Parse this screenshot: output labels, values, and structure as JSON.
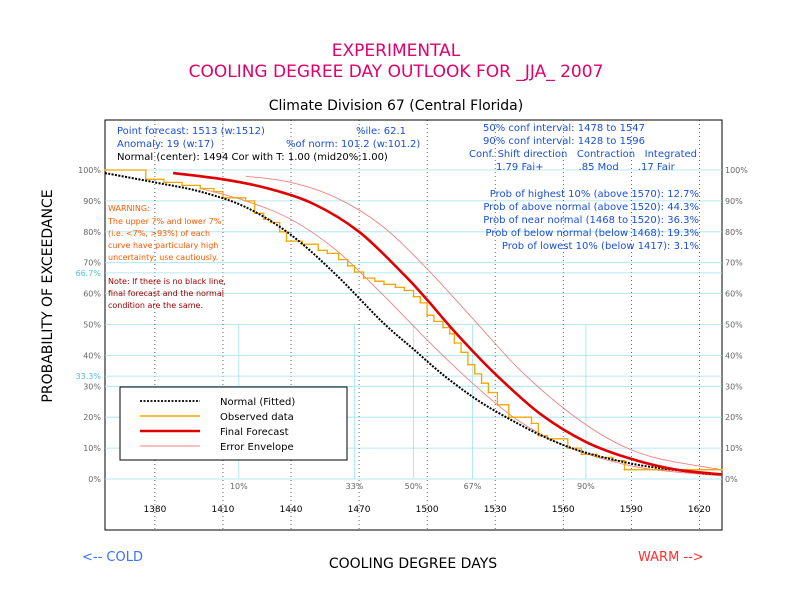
{
  "titles": {
    "line1": "EXPERIMENTAL",
    "line2": "COOLING DEGREE DAY OUTLOOK FOR _JJA_ 2007",
    "subtitle": "Climate Division 67 (Central Florida)"
  },
  "info": {
    "point_forecast": "Point forecast: 1513 (w:1512)",
    "anomaly": "Anomaly: 19 (w:17)",
    "normal": "Normal (center): 1494 Cor with T: 1.00 (mid20%:1.00)",
    "pctile": "%ile: 62.1",
    "pct_norm": "%of norm: 101.2 (w:101.2)",
    "conf50": "50% conf interval: 1478 to 1547",
    "conf90": "90% conf interval: 1428 to 1596",
    "conf_header": "Conf. Shift direction   Contraction   Integrated",
    "conf_values": "1.79 Fai+           .85 Mod      .17 Fair"
  },
  "probs": [
    "Prob of highest 10% (above 1570): 12.7%",
    "Prob of above normal (above 1520): 44.3%",
    "Prob of near normal (1468 to 1520): 36.3%",
    "Prob of below normal (below 1468): 19.3%",
    "Prob of lowest 10% (below 1417): 3.1%"
  ],
  "warning": {
    "title": "WARNING:",
    "lines": [
      "The upper 7% and lower 7%",
      "(i.e. <7%, >93%) of each",
      "curve have particulary high",
      "uncertainty; use cautiously."
    ]
  },
  "note": {
    "lines": [
      "Note: If there is no black line,",
      "final forecast and  the normal",
      "condition are the same."
    ]
  },
  "legend": {
    "normal": "Normal (Fitted)",
    "observed": "Observed data",
    "final": "Final Forecast",
    "envelope": "Error Envelope"
  },
  "footer": {
    "cold": "<-- COLD",
    "warm": "WARM -->"
  },
  "colors": {
    "title": "#e0006e",
    "info": "#1a4fd6",
    "normal": "#000000",
    "observed": "#f0a800",
    "final": "#e00000",
    "envelope": "#f08080",
    "grid": "#9fe3ef",
    "warning": "#ff5a00",
    "note": "#a00000",
    "warm": "#ff3030",
    "cold": "#3a6fff"
  },
  "chart_data": {
    "type": "line",
    "xlabel": "COOLING DEGREE DAYS",
    "ylabel": "PROBABILITY OF EXCEEDANCE",
    "xlim": [
      1358,
      1630
    ],
    "ylim": [
      0,
      100
    ],
    "x_ticks": [
      1380,
      1410,
      1440,
      1470,
      1500,
      1530,
      1560,
      1590,
      1620
    ],
    "y_ticks": [
      0,
      10,
      20,
      30,
      40,
      50,
      60,
      70,
      80,
      90,
      100
    ],
    "y_tick_labels": [
      "0%",
      "10%",
      "20%",
      "30%",
      "40%",
      "50%",
      "60%",
      "70%",
      "80%",
      "90%",
      "100%"
    ],
    "ref_lines_y": [
      {
        "value": 66.7,
        "label": "66.7%"
      },
      {
        "value": 33.3,
        "label": "33.3%"
      }
    ],
    "percentile_markers": [
      {
        "label": "10%",
        "x": 1417
      },
      {
        "label": "33%",
        "x": 1468
      },
      {
        "label": "50%",
        "x": 1494
      },
      {
        "label": "67%",
        "x": 1520
      },
      {
        "label": "90%",
        "x": 1570
      }
    ],
    "series": [
      {
        "name": "Normal (Fitted)",
        "x": [
          1358,
          1380,
          1400,
          1420,
          1440,
          1460,
          1480,
          1494,
          1510,
          1530,
          1560,
          1590,
          1620,
          1630
        ],
        "y": [
          99,
          96,
          93,
          88,
          79,
          66,
          51,
          42,
          32,
          22,
          11,
          5,
          2,
          1.5
        ]
      },
      {
        "name": "Observed data",
        "x": [
          1358,
          1376,
          1384,
          1392,
          1400,
          1406,
          1410,
          1420,
          1424,
          1428,
          1431,
          1435,
          1438,
          1445,
          1452,
          1456,
          1461,
          1465,
          1468,
          1472,
          1477,
          1481,
          1486,
          1490,
          1494,
          1497,
          1500,
          1503,
          1507,
          1510,
          1512,
          1515,
          1518,
          1521,
          1524,
          1527,
          1531,
          1536,
          1546,
          1549,
          1553,
          1562,
          1568,
          1575,
          1582,
          1587,
          1630
        ],
        "y": [
          100,
          97,
          96,
          95,
          94,
          93,
          91,
          90,
          86,
          84,
          83,
          80,
          77,
          76,
          74,
          73,
          71,
          69,
          67,
          65,
          64,
          63,
          62,
          61,
          59,
          57,
          53,
          51,
          49,
          47,
          44,
          41,
          37,
          34,
          31,
          28,
          24,
          20,
          18,
          14,
          13,
          10,
          8,
          7,
          6,
          3,
          3
        ]
      },
      {
        "name": "Final Forecast",
        "x": [
          1388,
          1410,
          1430,
          1450,
          1470,
          1490,
          1500,
          1513,
          1530,
          1550,
          1570,
          1590,
          1610,
          1630
        ],
        "y": [
          99,
          97,
          94,
          89,
          80,
          66,
          58,
          47,
          34,
          21,
          12,
          6.5,
          3,
          1.5
        ]
      },
      {
        "name": "Error Envelope (upper)",
        "x": [
          1420,
          1440,
          1460,
          1480,
          1500,
          1520,
          1540,
          1560,
          1580,
          1600,
          1630
        ],
        "y": [
          98,
          96,
          91,
          82,
          68,
          52,
          36,
          23,
          13,
          7,
          3
        ]
      },
      {
        "name": "Error Envelope (lower)",
        "x": [
          1400,
          1420,
          1440,
          1460,
          1480,
          1500,
          1520,
          1540,
          1560,
          1580,
          1600,
          1630
        ],
        "y": [
          94,
          90,
          84,
          74,
          60,
          45,
          31,
          19,
          11,
          6,
          3,
          1
        ]
      }
    ]
  }
}
